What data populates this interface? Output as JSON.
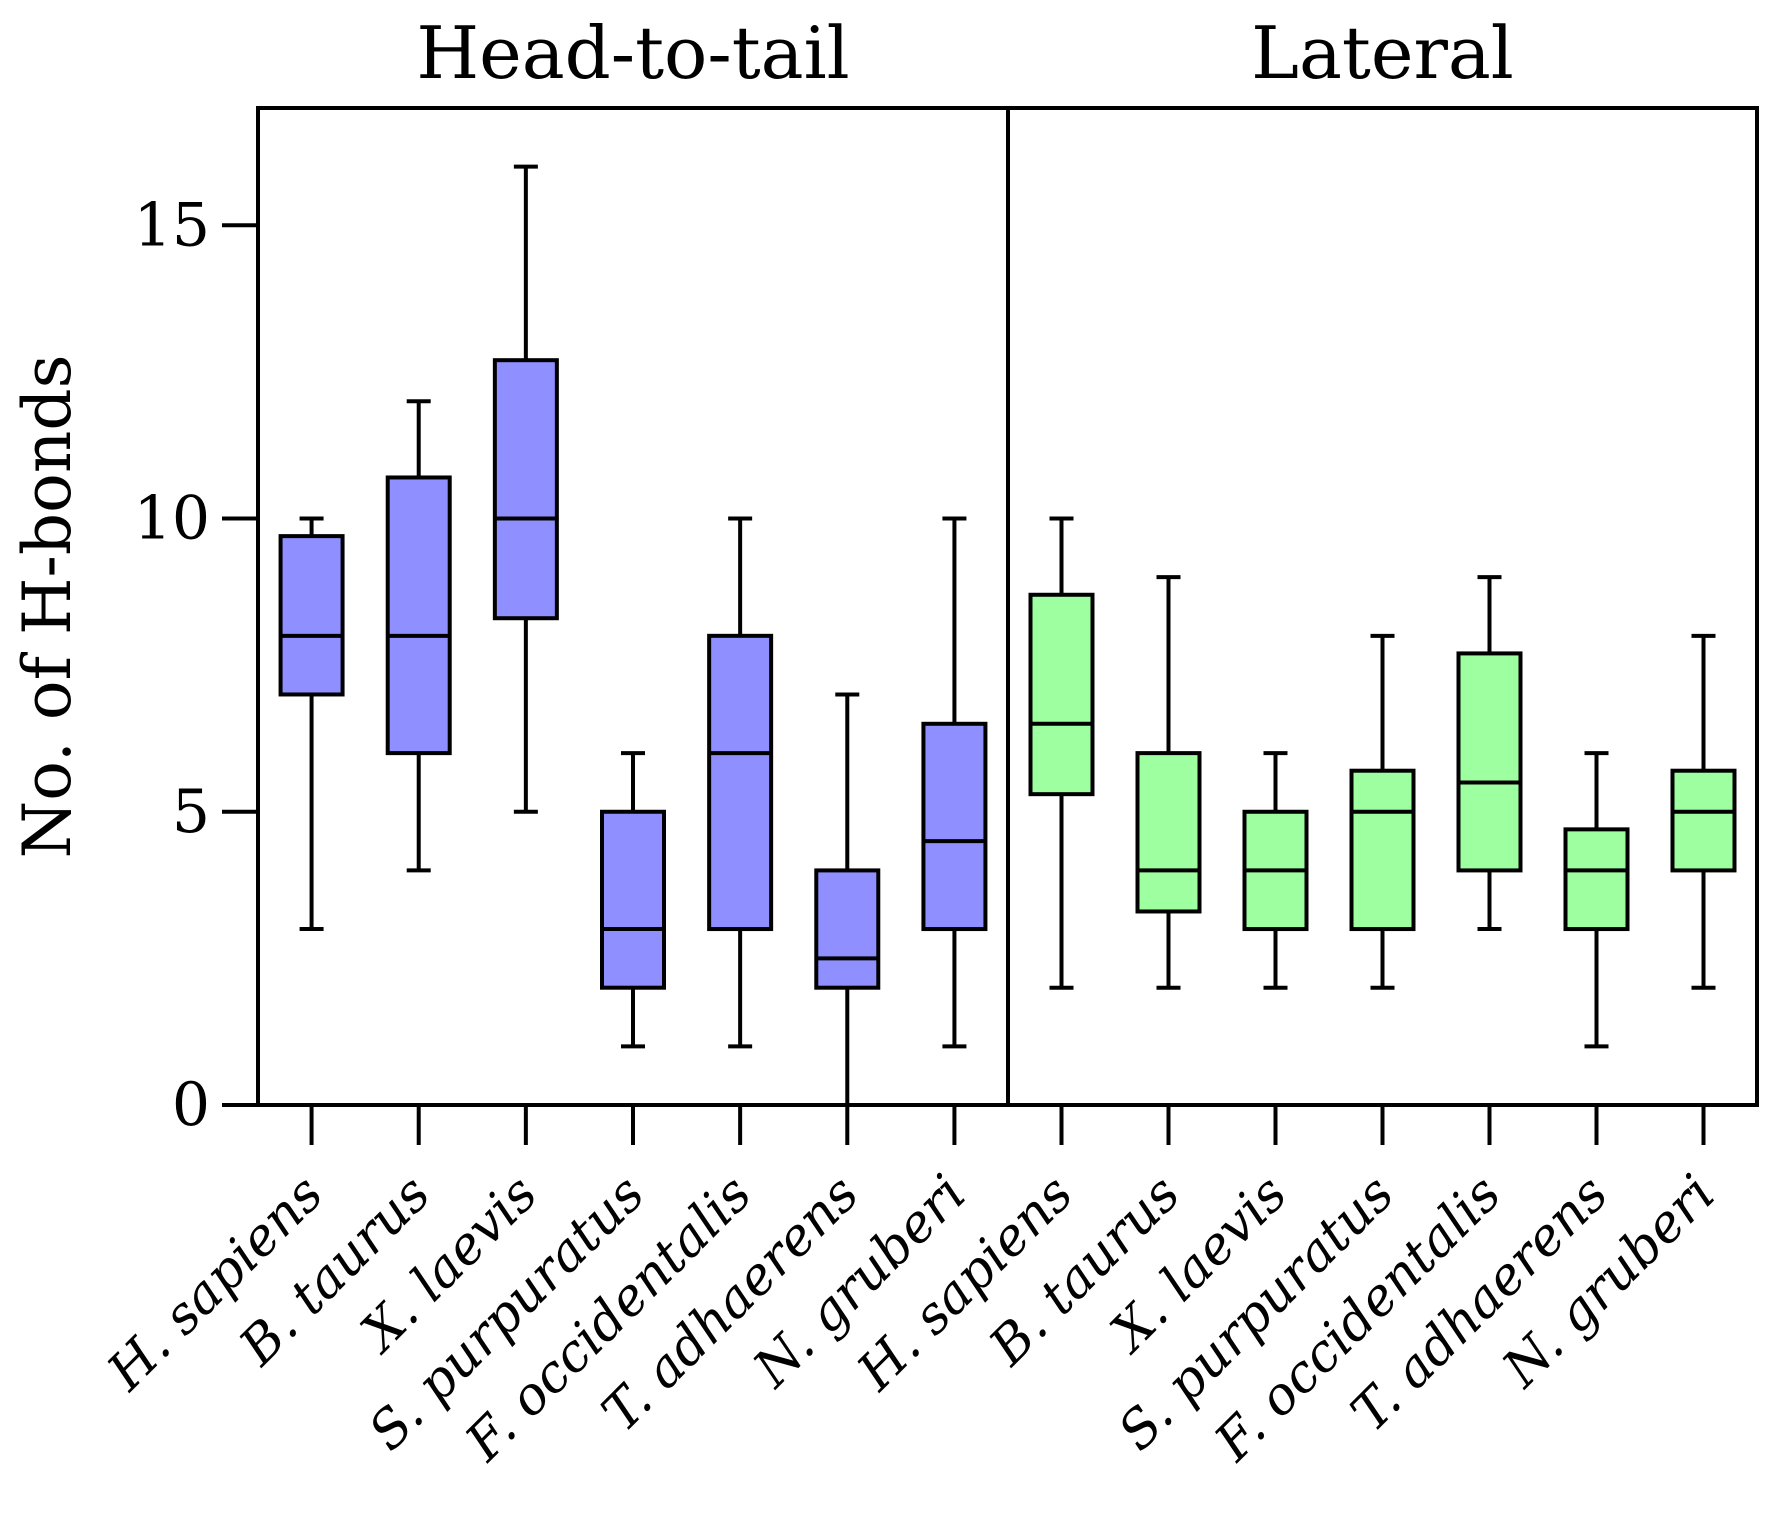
{
  "chart_data": {
    "type": "boxplot",
    "ylabel": "No. of H-bonds",
    "ylim": [
      0,
      17
    ],
    "yticks": [
      0,
      5,
      10,
      15
    ],
    "categories": [
      "H. sapiens",
      "B. taurus",
      "X. laevis",
      "S. purpuratus",
      "F. occidentalis",
      "T. adhaerens",
      "N. gruberi"
    ],
    "panels": [
      {
        "title": "Head-to-tail",
        "color": "#8f8fff",
        "boxes": [
          {
            "category": "H. sapiens",
            "min": 3,
            "q1": 7,
            "median": 8,
            "q3": 9.7,
            "max": 10
          },
          {
            "category": "B. taurus",
            "min": 4,
            "q1": 6,
            "median": 8,
            "q3": 10.7,
            "max": 12
          },
          {
            "category": "X. laevis",
            "min": 5,
            "q1": 8.3,
            "median": 10,
            "q3": 12.7,
            "max": 16
          },
          {
            "category": "S. purpuratus",
            "min": 1,
            "q1": 2,
            "median": 3,
            "q3": 5,
            "max": 6
          },
          {
            "category": "F. occidentalis",
            "min": 1,
            "q1": 3,
            "median": 6,
            "q3": 8,
            "max": 10
          },
          {
            "category": "T. adhaerens",
            "min": 0,
            "q1": 2,
            "median": 2.5,
            "q3": 4,
            "max": 7
          },
          {
            "category": "N. gruberi",
            "min": 1,
            "q1": 3,
            "median": 4.5,
            "q3": 6.5,
            "max": 10
          }
        ]
      },
      {
        "title": "Lateral",
        "color": "#9effa0",
        "boxes": [
          {
            "category": "H. sapiens",
            "min": 2,
            "q1": 5.3,
            "median": 6.5,
            "q3": 8.7,
            "max": 10
          },
          {
            "category": "B. taurus",
            "min": 2,
            "q1": 3.3,
            "median": 4,
            "q3": 6,
            "max": 9
          },
          {
            "category": "X. laevis",
            "min": 2,
            "q1": 3,
            "median": 4,
            "q3": 5,
            "max": 6
          },
          {
            "category": "S. purpuratus",
            "min": 2,
            "q1": 3,
            "median": 5,
            "q3": 5.7,
            "max": 8
          },
          {
            "category": "F. occidentalis",
            "min": 3,
            "q1": 4,
            "median": 5.5,
            "q3": 7.7,
            "max": 9
          },
          {
            "category": "T. adhaerens",
            "min": 1,
            "q1": 3,
            "median": 4,
            "q3": 4.7,
            "max": 6
          },
          {
            "category": "N. gruberi",
            "min": 2,
            "q1": 4,
            "median": 5,
            "q3": 5.7,
            "max": 8
          }
        ]
      }
    ]
  }
}
